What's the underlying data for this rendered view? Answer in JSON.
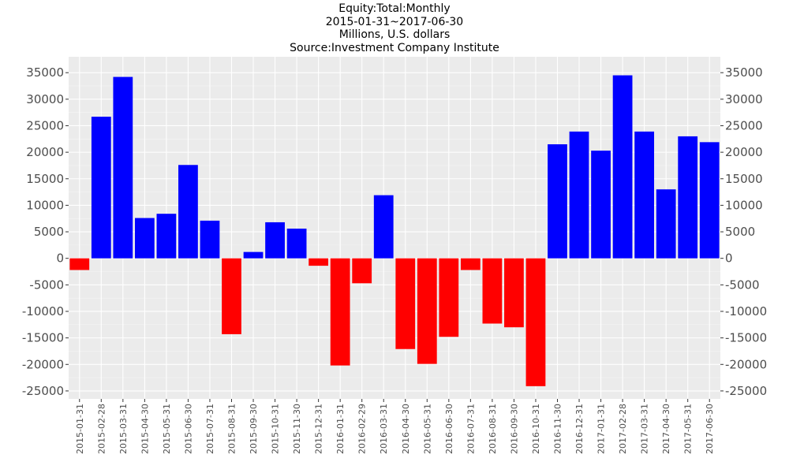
{
  "chart_data": {
    "type": "bar",
    "title": "Equity:Total:Monthly",
    "subtitle_lines": [
      "2015-01-31~2017-06-30",
      "Millions, U.S. dollars",
      "Source:Investment Company Institute"
    ],
    "xlabel": "",
    "ylabel": "",
    "ylim": [
      -26500,
      38000
    ],
    "yticks": [
      -25000,
      -20000,
      -15000,
      -10000,
      -5000,
      0,
      5000,
      10000,
      15000,
      20000,
      25000,
      30000,
      35000
    ],
    "grid": true,
    "legend": "none",
    "positive_color": "#0000ff",
    "negative_color": "#ff0000",
    "panel_color": "#ebebeb",
    "categories": [
      "2015-01-31",
      "2015-02-28",
      "2015-03-31",
      "2015-04-30",
      "2015-05-31",
      "2015-06-30",
      "2015-07-31",
      "2015-08-31",
      "2015-09-30",
      "2015-10-31",
      "2015-11-30",
      "2015-12-31",
      "2016-01-31",
      "2016-02-29",
      "2016-03-31",
      "2016-04-30",
      "2016-05-31",
      "2016-06-30",
      "2016-07-31",
      "2016-08-31",
      "2016-09-30",
      "2016-10-31",
      "2016-11-30",
      "2016-12-31",
      "2017-01-31",
      "2017-02-28",
      "2017-03-31",
      "2017-04-30",
      "2017-05-31",
      "2017-06-30"
    ],
    "values": [
      -2200,
      26700,
      34200,
      7600,
      8400,
      17600,
      7100,
      -14300,
      1200,
      6800,
      5600,
      -1400,
      -20200,
      -4700,
      11900,
      -17100,
      -19900,
      -14800,
      -2200,
      -12300,
      -13000,
      -24100,
      21500,
      23900,
      20300,
      34500,
      23900,
      13000,
      23000,
      21900
    ]
  }
}
